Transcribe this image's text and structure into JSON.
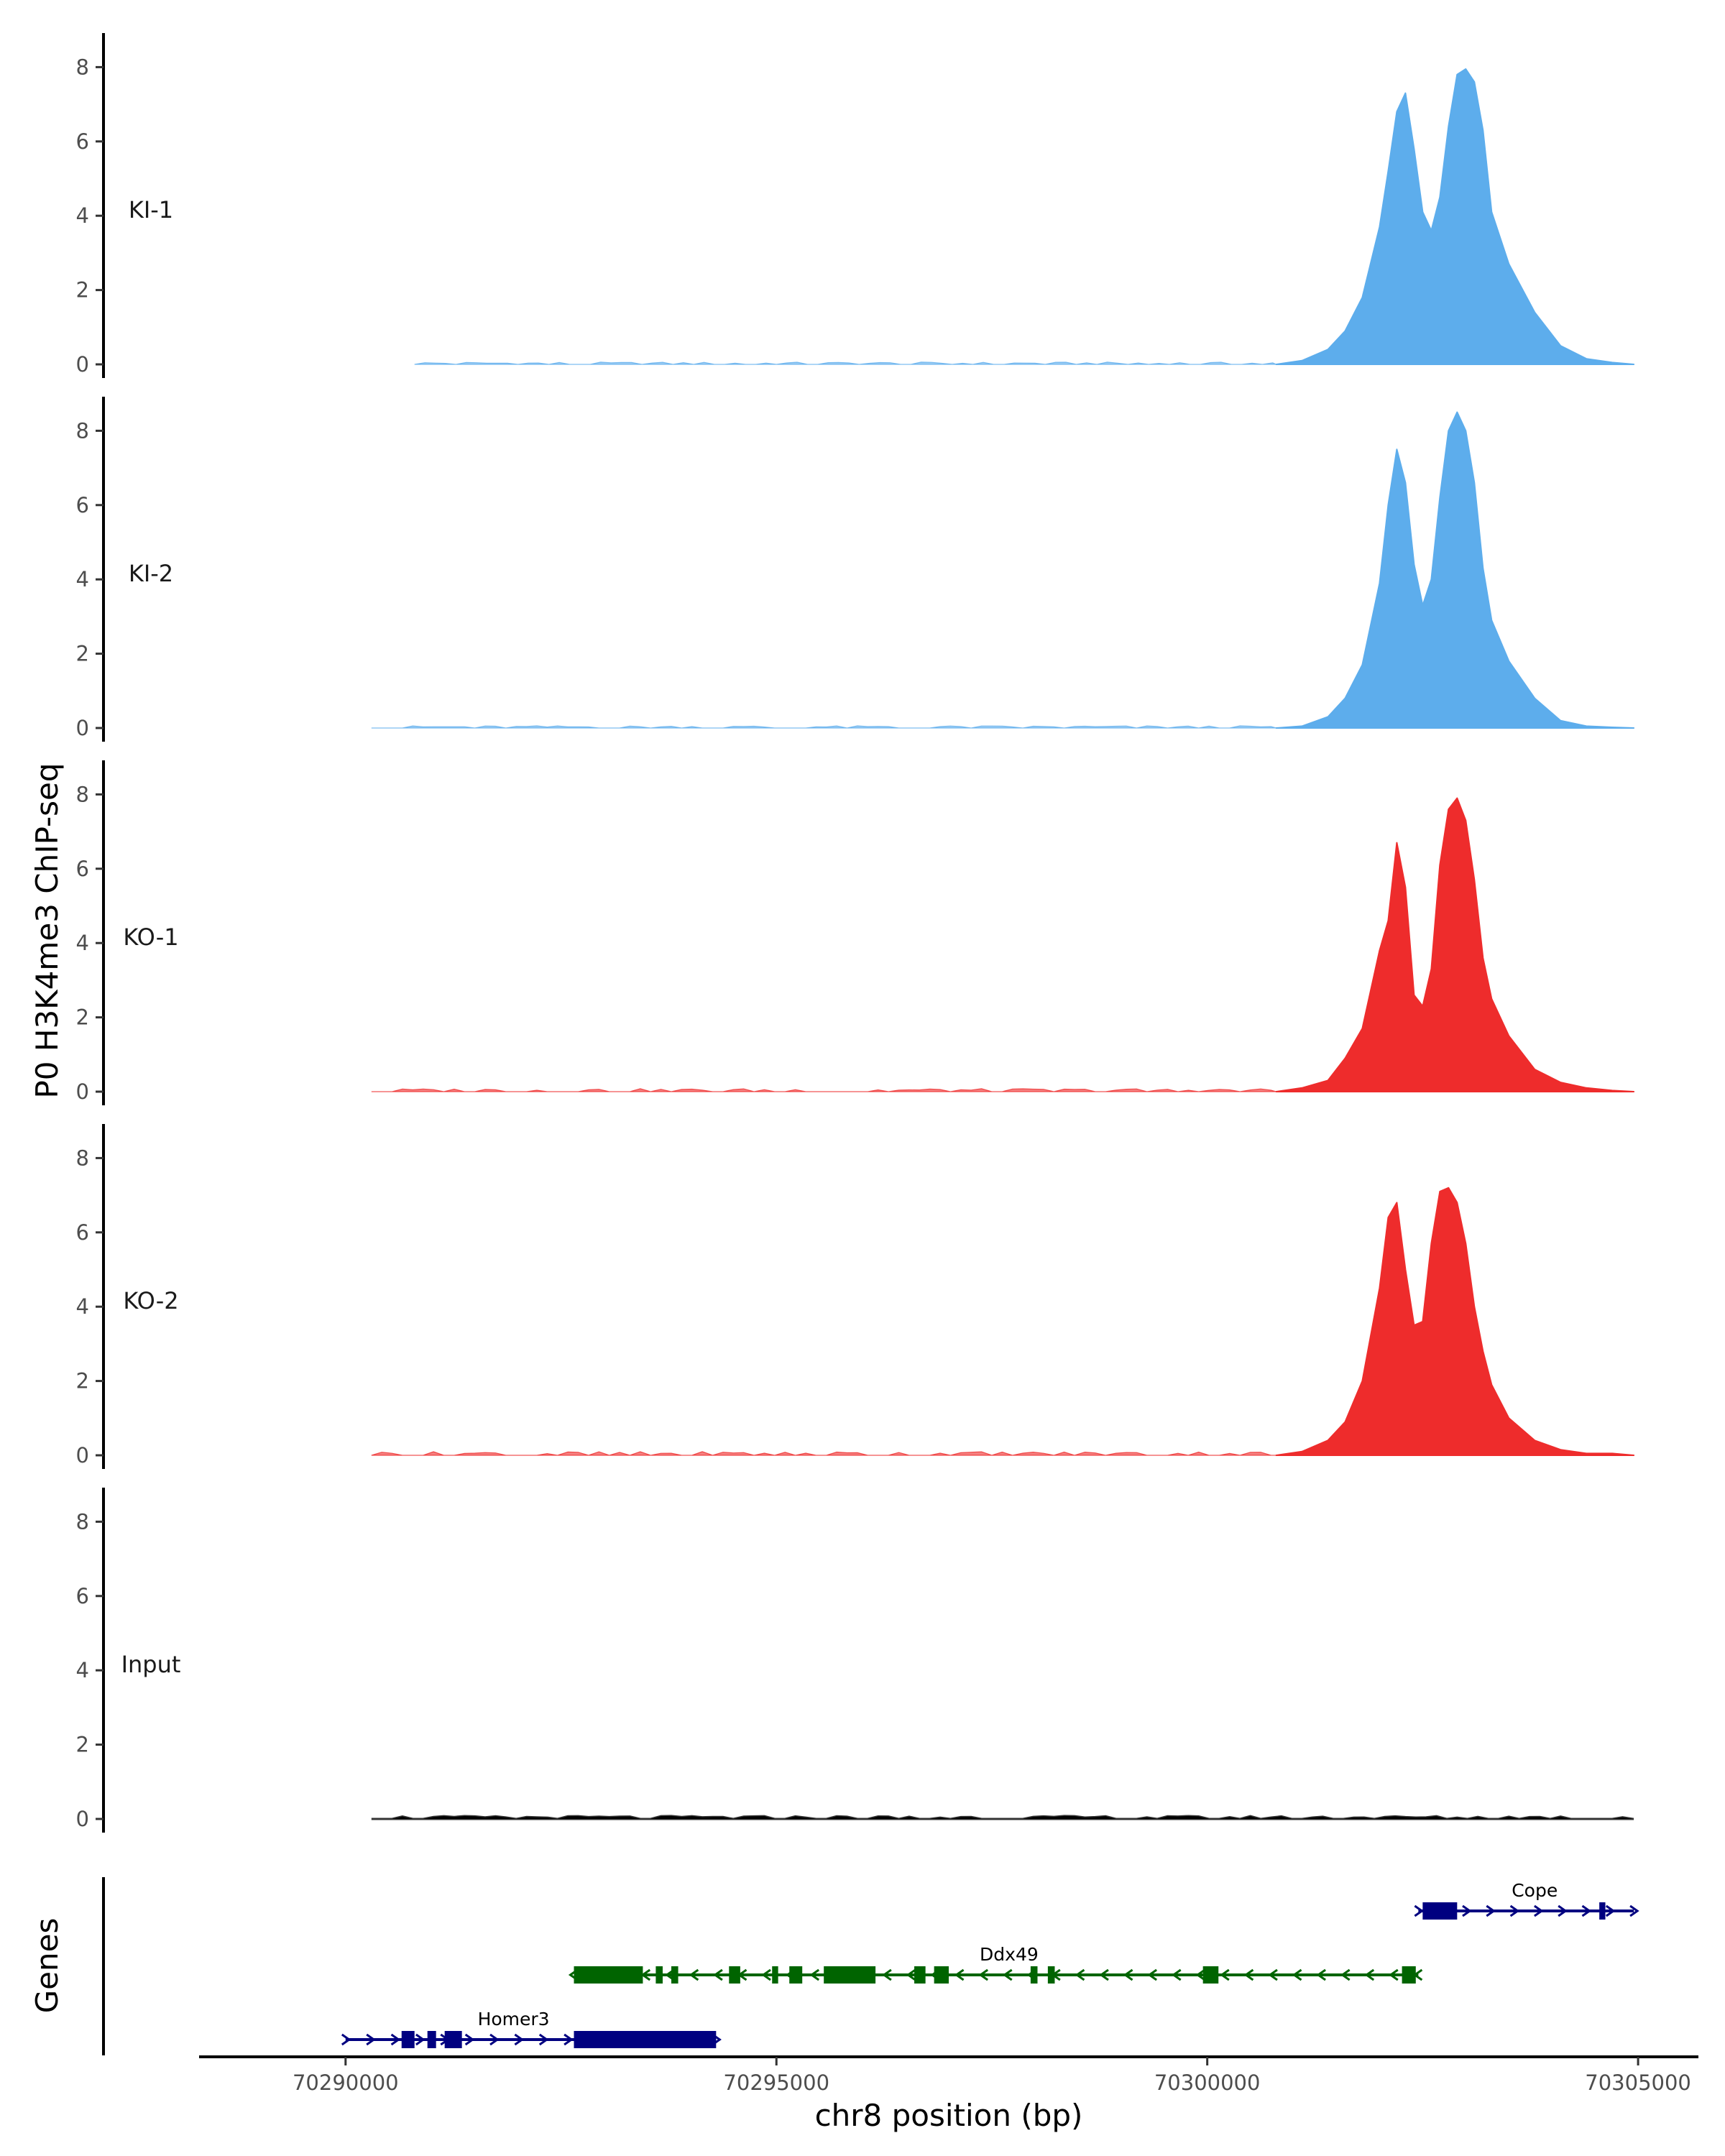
{
  "chart_data": {
    "type": "area",
    "title": "",
    "ylabel": "P0 H3K4me3 ChIP-seq",
    "xlabel": "chr8 position (bp)",
    "genes_label": "Genes",
    "xlim": [
      70288300,
      70305700
    ],
    "ylim": [
      0,
      8.9
    ],
    "x_ticks": [
      70290000,
      70295000,
      70300000,
      70305000
    ],
    "x_tick_labels": [
      "70290000",
      "70295000",
      "70300000",
      "70305000"
    ],
    "y_ticks": [
      0,
      2,
      4,
      6,
      8
    ],
    "y_tick_labels": [
      "0",
      "2",
      "4",
      "6",
      "8"
    ],
    "colors": {
      "KI": "#5dadec",
      "KO": "#ee2c2c",
      "Input": "#000000",
      "plus_strand": "#000080",
      "minus_strand": "#006400"
    },
    "tracks": [
      {
        "label": "KI-1",
        "color": "#5dadec",
        "peak_region": {
          "x": [
            70300800,
            70301100,
            70301400,
            70301600,
            70301800,
            70302000,
            70302100,
            70302200,
            70302300,
            70302400,
            70302500,
            70302600,
            70302700,
            70302800,
            70302900,
            70303000,
            70303100,
            70303200,
            70303300,
            70303500,
            70303800,
            70304100,
            70304400,
            70304700,
            70304950
          ],
          "y": [
            0,
            0.1,
            0.4,
            0.9,
            1.8,
            3.7,
            5.2,
            6.8,
            7.3,
            5.8,
            4.1,
            3.6,
            4.5,
            6.4,
            7.8,
            7.95,
            7.6,
            6.3,
            4.1,
            2.7,
            1.4,
            0.5,
            0.15,
            0.05,
            0
          ]
        },
        "background": {
          "start": 70290800,
          "end": 70304950,
          "noise": 0.03
        }
      },
      {
        "label": "KI-2",
        "color": "#5dadec",
        "peak_region": {
          "x": [
            70300800,
            70301100,
            70301400,
            70301600,
            70301800,
            70302000,
            70302100,
            70302200,
            70302300,
            70302400,
            70302500,
            70302600,
            70302700,
            70302800,
            70302900,
            70303000,
            70303100,
            70303200,
            70303300,
            70303500,
            70303800,
            70304100,
            70304400,
            70304700,
            70304950
          ],
          "y": [
            0,
            0.05,
            0.3,
            0.8,
            1.7,
            3.9,
            6.0,
            7.5,
            6.6,
            4.4,
            3.3,
            4.0,
            6.2,
            8.0,
            8.5,
            8.0,
            6.6,
            4.3,
            2.9,
            1.8,
            0.8,
            0.2,
            0.05,
            0.02,
            0
          ]
        },
        "background": {
          "start": 70290300,
          "end": 70304950,
          "noise": 0.03
        }
      },
      {
        "label": "KO-1",
        "color": "#ee2c2c",
        "peak_region": {
          "x": [
            70300800,
            70301100,
            70301400,
            70301600,
            70301800,
            70302000,
            70302100,
            70302200,
            70302300,
            70302400,
            70302500,
            70302600,
            70302700,
            70302800,
            70302900,
            70303000,
            70303100,
            70303200,
            70303300,
            70303500,
            70303800,
            70304100,
            70304400,
            70304700,
            70304950
          ],
          "y": [
            0,
            0.1,
            0.3,
            0.9,
            1.7,
            3.8,
            4.6,
            6.7,
            5.5,
            2.6,
            2.3,
            3.3,
            6.1,
            7.6,
            7.9,
            7.3,
            5.7,
            3.6,
            2.5,
            1.5,
            0.6,
            0.25,
            0.1,
            0.03,
            0
          ]
        },
        "background": {
          "start": 70290300,
          "end": 70304950,
          "noise": 0.04
        }
      },
      {
        "label": "KO-2",
        "color": "#ee2c2c",
        "peak_region": {
          "x": [
            70300800,
            70301100,
            70301400,
            70301600,
            70301800,
            70302000,
            70302100,
            70302200,
            70302300,
            70302400,
            70302500,
            70302600,
            70302700,
            70302800,
            70302900,
            70303000,
            70303100,
            70303200,
            70303300,
            70303500,
            70303800,
            70304100,
            70304400,
            70304700,
            70304950
          ],
          "y": [
            0,
            0.1,
            0.4,
            0.9,
            2.0,
            4.5,
            6.4,
            6.8,
            5.0,
            3.5,
            3.6,
            5.7,
            7.1,
            7.2,
            6.8,
            5.7,
            4.0,
            2.8,
            1.9,
            1.0,
            0.4,
            0.15,
            0.05,
            0.05,
            0
          ]
        },
        "background": {
          "start": 70290300,
          "end": 70304950,
          "noise": 0.05
        }
      },
      {
        "label": "Input",
        "color": "#000000",
        "peak_region": {
          "x": [],
          "y": []
        },
        "background": {
          "start": 70290300,
          "end": 70304950,
          "noise": 0.04
        }
      }
    ],
    "genes": [
      {
        "name": "Cope",
        "strand": "+",
        "color": "#000080",
        "row": 3,
        "start": 70302450,
        "end": 70304950,
        "exons": [
          [
            70302500,
            70302900
          ],
          [
            70304550,
            70304620
          ]
        ],
        "label_at": 70303800
      },
      {
        "name": "Ddx49",
        "strand": "-",
        "color": "#006400",
        "row": 2,
        "start": 70292650,
        "end": 70302450,
        "exons": [
          [
            70292650,
            70293450
          ],
          [
            70293600,
            70293680
          ],
          [
            70293780,
            70293860
          ],
          [
            70294450,
            70294580
          ],
          [
            70294950,
            70295020
          ],
          [
            70295150,
            70295300
          ],
          [
            70295550,
            70296150
          ],
          [
            70296600,
            70296730
          ],
          [
            70296830,
            70297000
          ],
          [
            70297950,
            70298030
          ],
          [
            70298150,
            70298230
          ],
          [
            70299950,
            70300130
          ],
          [
            70302260,
            70302420
          ]
        ],
        "label_at": 70297700
      },
      {
        "name": "Homer3",
        "strand": "+",
        "color": "#000080",
        "row": 1,
        "start": 70290000,
        "end": 70294300,
        "exons": [
          [
            70290650,
            70290800
          ],
          [
            70290950,
            70291050
          ],
          [
            70291150,
            70291350
          ],
          [
            70292650,
            70294300
          ]
        ],
        "label_at": 70291950
      }
    ]
  }
}
